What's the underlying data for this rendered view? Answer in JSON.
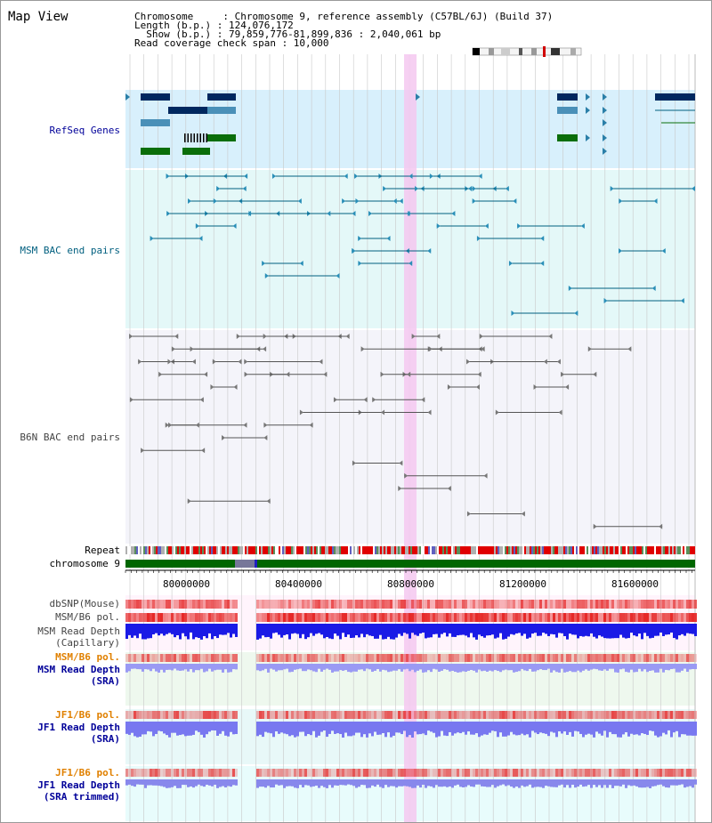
{
  "header": {
    "title": "Map View",
    "info_lines": [
      "Chromosome     : Chromosome 9, reference assembly (C57BL/6J) (Build 37)",
      "Length (b.p.) : 124,076,172",
      "  Show (b.p.) : 79,859,776-81,899,836 : 2,040,061 bp",
      "Read coverage check span : 10,000"
    ]
  },
  "tracks": {
    "refseq": "RefSeq Genes",
    "msm_bac": "MSM BAC end pairs",
    "b6n_bac": "B6N BAC end pairs",
    "repeat": "Repeat",
    "chromosome": "chromosome 9",
    "dbsnp": "dbSNP(Mouse)",
    "msm_b6_pol": "MSM/B6 pol.",
    "msm_depth_cap_1": "MSM Read Depth",
    "msm_depth_cap_2": "(Capillary)",
    "msm_b6_pol_2": "MSM/B6 pol.",
    "msm_depth_sra_1": "MSM Read Depth",
    "msm_depth_sra_2": "(SRA)",
    "jf1_b6_pol": "JF1/B6 pol.",
    "jf1_depth_sra_1": "JF1 Read Depth",
    "jf1_depth_sra_2": "(SRA)",
    "jf1_b6_pol_2": "JF1/B6 pol.",
    "jf1_depth_trim_1": "JF1 Read Depth",
    "jf1_depth_trim_2": "(SRA trimmed)"
  },
  "axis": {
    "ticks": [
      "80000000",
      "80400000",
      "80800000",
      "81200000",
      "81600000"
    ]
  },
  "colors": {
    "refseq_bg": "#d8f0fc",
    "msm_bg": "#e4f8f8",
    "b6n_bg": "#f4f4fa",
    "highlight": "#f4c8f0",
    "chromosome": "#006600",
    "depth_blue": "#1a1ae6",
    "depth_light": "#7878f0",
    "snp_red": "#f07070",
    "label_blue": "#000099",
    "label_teal": "#005f7f",
    "label_orange": "#e08000",
    "label_gray": "#444444"
  }
}
